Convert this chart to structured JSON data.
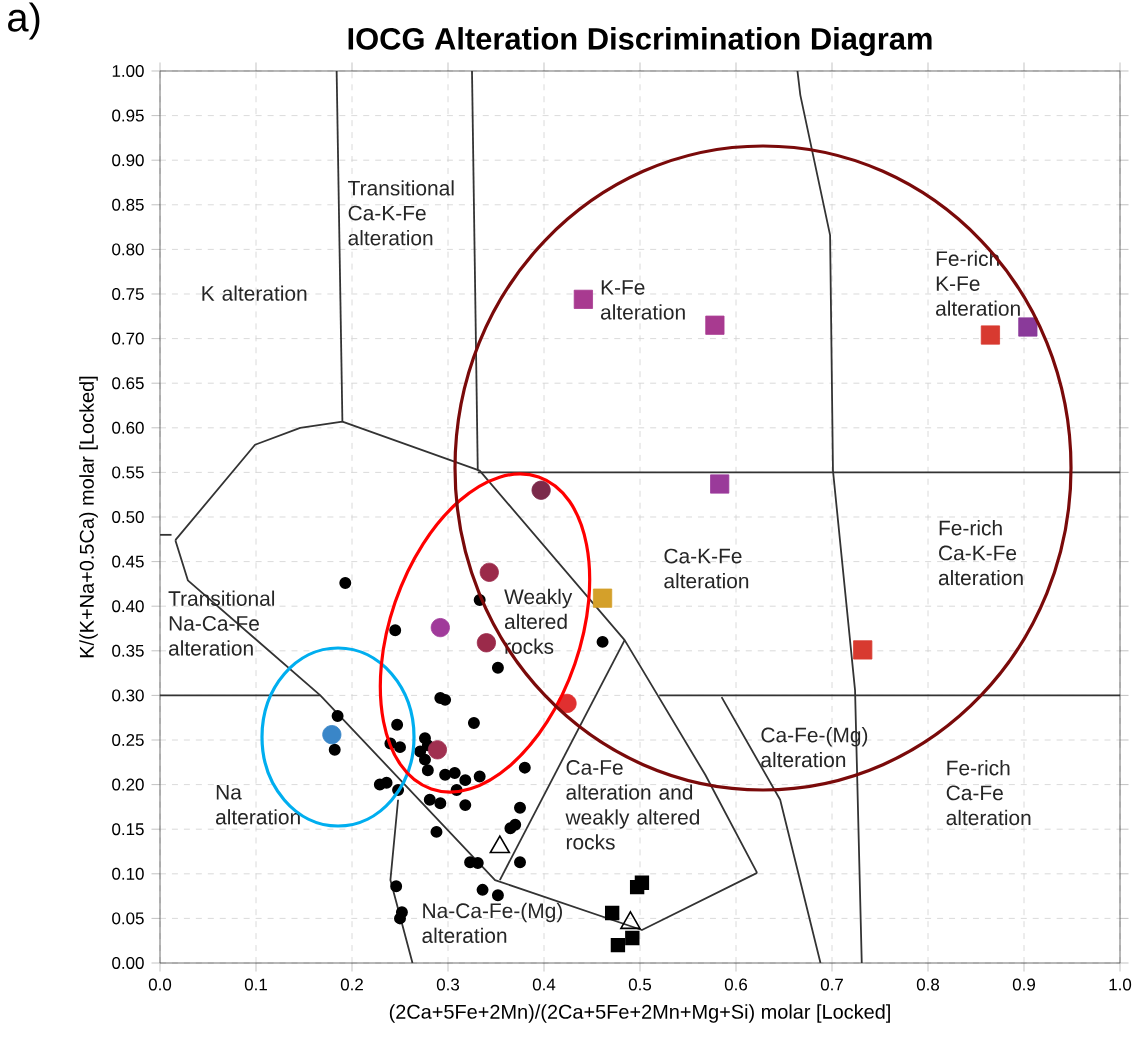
{
  "chart_data": {
    "type": "scatter",
    "title": "IOCG Alteration Discrimination Diagram",
    "xlabel": "(2Ca+5Fe+2Mn)/(2Ca+5Fe+2Mn+Mg+Si) molar [Locked]",
    "ylabel": "K/(K+Na+0.5Ca) molar [Locked]",
    "xlim": [
      0,
      1
    ],
    "ylim": [
      0,
      1
    ],
    "xticks": [
      {
        "value": 0,
        "label": "0.0"
      },
      0.1,
      0.2,
      0.3,
      0.4,
      0.5,
      0.6,
      0.7,
      0.8,
      0.9,
      {
        "value": 1,
        "label": "1.0"
      }
    ],
    "yticks": [
      {
        "value": 0,
        "label": "0.00"
      },
      0.05,
      {
        "value": 0.1,
        "label": "0.10"
      },
      0.15,
      {
        "value": 0.2,
        "label": "0.20"
      },
      0.25,
      {
        "value": 0.3,
        "label": "0.30"
      },
      0.35,
      {
        "value": 0.4,
        "label": "0.40"
      },
      0.45,
      {
        "value": 0.5,
        "label": "0.50"
      },
      0.55,
      {
        "value": 0.6,
        "label": "0.60"
      },
      0.65,
      {
        "value": 0.7,
        "label": "0.70"
      },
      0.75,
      {
        "value": 0.8,
        "label": "0.80"
      },
      0.85,
      {
        "value": 0.9,
        "label": "0.90"
      },
      0.95,
      {
        "value": 1,
        "label": "1.00"
      }
    ],
    "grid": true,
    "series": [
      {
        "type": "line",
        "color": "#333333",
        "x": [
          0.184,
          0.19
        ],
        "values": [
          1.0,
          0.607
        ]
      },
      {
        "type": "line",
        "color": "#333333",
        "x": [
          0.325,
          0.331
        ],
        "values": [
          1.0,
          0.552
        ]
      },
      {
        "type": "line",
        "color": "#333333",
        "x": [
          0.331,
          1.0
        ],
        "values": [
          0.55,
          0.55
        ]
      },
      {
        "type": "line",
        "color": "#333333",
        "x": [
          0.664,
          0.667,
          0.698,
          0.701,
          0.724,
          0.731
        ],
        "values": [
          1.0,
          0.973,
          0.816,
          0.552,
          0.306,
          0.0
        ]
      },
      {
        "type": "line",
        "color": "#333333",
        "x": [
          0.0,
          0.167
        ],
        "values": [
          0.3,
          0.3
        ]
      },
      {
        "type": "line",
        "color": "#333333",
        "x": [
          0.52,
          1.0
        ],
        "values": [
          0.3,
          0.3
        ]
      },
      {
        "type": "line",
        "color": "#333333",
        "x": [
          0.0,
          0.012
        ],
        "values": [
          0.48,
          0.48
        ]
      },
      {
        "type": "line",
        "color": "#333333",
        "x": [
          0.016,
          0.099,
          0.146,
          0.19,
          0.333,
          0.484,
          0.568,
          0.622
        ],
        "values": [
          0.474,
          0.581,
          0.6,
          0.607,
          0.552,
          0.362,
          0.211,
          0.101
        ]
      },
      {
        "type": "line",
        "color": "#333333",
        "x": [
          0.016,
          0.029,
          0.167,
          0.349,
          0.502,
          0.622
        ],
        "values": [
          0.474,
          0.429,
          0.3,
          0.093,
          0.037,
          0.101
        ]
      },
      {
        "type": "line",
        "color": "#333333",
        "x": [
          0.354,
          0.484
        ],
        "values": [
          0.093,
          0.362
        ]
      },
      {
        "type": "line",
        "color": "#333333",
        "x": [
          0.248,
          0.24,
          0.263
        ],
        "values": [
          0.183,
          0.093,
          0.0
        ]
      },
      {
        "type": "line",
        "color": "#333333",
        "x": [
          0.585,
          0.646,
          0.688
        ],
        "values": [
          0.298,
          0.183,
          0.0
        ]
      },
      {
        "marker": "circle",
        "color": "#000000",
        "x": [
          0.193,
          0.245,
          0.333,
          0.352,
          0.292,
          0.297,
          0.327,
          0.185,
          0.182,
          0.247,
          0.24,
          0.25,
          0.276,
          0.279,
          0.271,
          0.276,
          0.279,
          0.297,
          0.307,
          0.333,
          0.318,
          0.38,
          0.309,
          0.281,
          0.292,
          0.318,
          0.236,
          0.229,
          0.248,
          0.375,
          0.365,
          0.37,
          0.288,
          0.323,
          0.331,
          0.375,
          0.336,
          0.352,
          0.246,
          0.252,
          0.25,
          0.461
        ],
        "values": [
          0.426,
          0.373,
          0.407,
          0.331,
          0.297,
          0.295,
          0.269,
          0.277,
          0.239,
          0.267,
          0.246,
          0.242,
          0.252,
          0.244,
          0.237,
          0.228,
          0.216,
          0.211,
          0.213,
          0.209,
          0.205,
          0.219,
          0.194,
          0.183,
          0.179,
          0.177,
          0.202,
          0.2,
          0.194,
          0.174,
          0.151,
          0.155,
          0.147,
          0.113,
          0.112,
          0.113,
          0.082,
          0.076,
          0.086,
          0.057,
          0.05,
          0.36
        ]
      },
      {
        "marker": "square",
        "color": "#000000",
        "x": [
          0.502,
          0.497,
          0.471,
          0.492,
          0.477
        ],
        "values": [
          0.09,
          0.085,
          0.056,
          0.028,
          0.02
        ]
      },
      {
        "marker": "triangle",
        "color": "#000000",
        "x": [
          0.354,
          0.49
        ],
        "values": [
          0.13,
          0.045
        ]
      },
      {
        "marker": "circle",
        "colors": [
          "#7b2a4a",
          "#9b2a4a",
          "#9b2a4a",
          "#a03a9a",
          "#e03030",
          "#a03050",
          "#3a86c8"
        ],
        "x": [
          0.397,
          0.343,
          0.34,
          0.292,
          0.424,
          0.289,
          0.179
        ],
        "values": [
          0.53,
          0.438,
          0.359,
          0.376,
          0.291,
          0.239,
          0.256
        ]
      },
      {
        "marker": "square",
        "colors": [
          "#a83a90",
          "#a83a90",
          "#9a3a9a",
          "#8a3a9a",
          "#d83a30",
          "#d4a02a",
          "#d83a30"
        ],
        "x": [
          0.441,
          0.578,
          0.583,
          0.904,
          0.865,
          0.461,
          0.732
        ],
        "values": [
          0.744,
          0.715,
          0.537,
          0.713,
          0.704,
          0.409,
          0.351
        ]
      }
    ],
    "annotations": [
      "Transitional Ca-K-Fe alteration",
      "K alteration",
      "K-Fe alteration",
      "Fe-rich K-Fe alteration",
      "Ca-K-Fe alteration",
      "Fe-rich Ca-K-Fe alteration",
      "Transitional Na-Ca-Fe alteration",
      "Weakly altered rocks",
      "Ca-Fe-(Mg) alteration",
      "Fe-rich Ca-Fe alteration",
      "Na alteration",
      "Ca-Fe alteration and weakly altered rocks",
      "Na-Ca-Fe-(Mg) alteration",
      "a)"
    ]
  }
}
